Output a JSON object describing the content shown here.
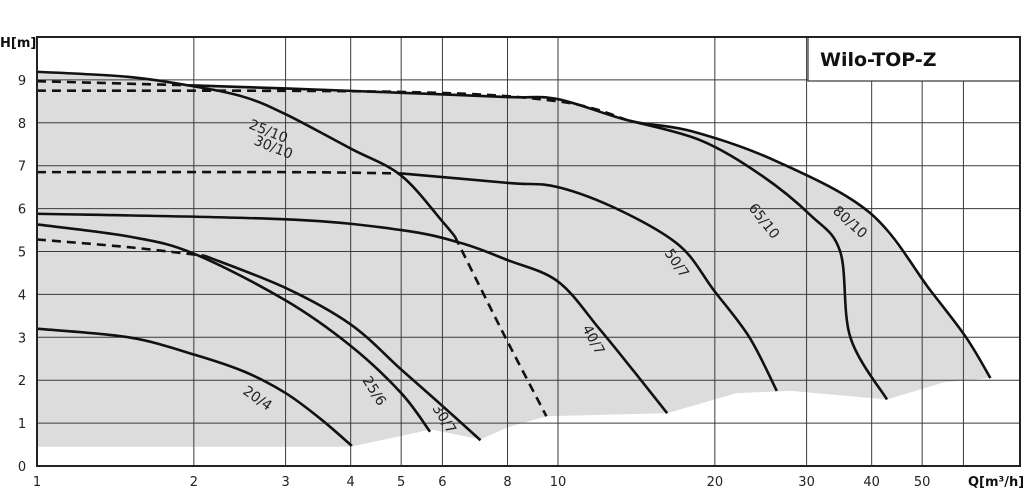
{
  "chart_data": {
    "type": "line",
    "title": "Wilo-TOP-Z",
    "xlabel": "Q[m³/h]",
    "ylabel": "H[m]",
    "x_scale": "log",
    "xlim": [
      1,
      77
    ],
    "ylim": [
      0,
      10
    ],
    "x_ticks": [
      1,
      2,
      3,
      4,
      5,
      6,
      8,
      10,
      20,
      30,
      40,
      50
    ],
    "x_gridlines": [
      2,
      3,
      4,
      5,
      6,
      8,
      10,
      20,
      30,
      40,
      50,
      60
    ],
    "y_ticks": [
      0,
      1,
      2,
      3,
      4,
      5,
      6,
      7,
      8,
      9
    ],
    "grid": true,
    "colors": {
      "curve": "#111111",
      "shade": "#dcdcdc",
      "grid": "#3a3a3a"
    },
    "shaded_region": {
      "top": [
        [
          1,
          9.19
        ],
        [
          1.5,
          9.05
        ],
        [
          2,
          8.87
        ],
        [
          3,
          8.8
        ],
        [
          5,
          8.7
        ],
        [
          8,
          8.6
        ],
        [
          10,
          8.55
        ],
        [
          13.7,
          8.05
        ],
        [
          18,
          7.8
        ],
        [
          28,
          7.0
        ],
        [
          40,
          5.9
        ],
        [
          52,
          4.1
        ],
        [
          60.7,
          3.0
        ],
        [
          67.6,
          2.05
        ]
      ],
      "bottom": [
        [
          1,
          0.45
        ],
        [
          4,
          0.45
        ],
        [
          5.7,
          0.85
        ],
        [
          7.1,
          0.62
        ],
        [
          8,
          0.9
        ],
        [
          9.5,
          1.16
        ],
        [
          16.2,
          1.23
        ],
        [
          22,
          1.7
        ],
        [
          28,
          1.75
        ],
        [
          42.8,
          1.55
        ],
        [
          55,
          1.95
        ],
        [
          67.6,
          2.05
        ]
      ]
    },
    "series": [
      {
        "name": "20/4",
        "solid": [
          [
            1,
            3.2
          ],
          [
            1.5,
            3.0
          ],
          [
            2,
            2.6
          ],
          [
            2.5,
            2.2
          ],
          [
            3,
            1.7
          ],
          [
            3.5,
            1.1
          ],
          [
            4.02,
            0.47
          ]
        ],
        "dashed": []
      },
      {
        "name": "25/6",
        "solid": [
          [
            1,
            5.63
          ],
          [
            1.5,
            5.35
          ],
          [
            2,
            4.95
          ],
          [
            3,
            3.86
          ],
          [
            4,
            2.8
          ],
          [
            5,
            1.7
          ],
          [
            5.68,
            0.8
          ]
        ],
        "dashed": []
      },
      {
        "name": "30/7",
        "solid": [
          [
            2.1,
            4.9
          ],
          [
            3,
            4.15
          ],
          [
            4,
            3.3
          ],
          [
            5,
            2.25
          ],
          [
            6,
            1.4
          ],
          [
            7.1,
            0.6
          ]
        ],
        "dashed": [
          [
            1,
            5.28
          ],
          [
            1.5,
            5.1
          ],
          [
            2.1,
            4.9
          ]
        ]
      },
      {
        "name": "40/7",
        "solid": [
          [
            1,
            5.88
          ],
          [
            3,
            5.75
          ],
          [
            5,
            5.5
          ],
          [
            6.5,
            5.2
          ],
          [
            8,
            4.8
          ],
          [
            10,
            4.3
          ],
          [
            12,
            3.2
          ],
          [
            14,
            2.2
          ],
          [
            16.2,
            1.23
          ]
        ],
        "dashed": []
      },
      {
        "name": "25/10 30/10",
        "solid": [
          [
            1,
            9.19
          ],
          [
            1.5,
            9.07
          ],
          [
            2,
            8.85
          ],
          [
            2.5,
            8.6
          ],
          [
            3,
            8.2
          ],
          [
            4,
            7.4
          ],
          [
            5,
            6.77
          ],
          [
            6,
            5.7
          ],
          [
            6.34,
            5.35
          ]
        ],
        "dashed": [
          [
            6.34,
            5.35
          ],
          [
            7,
            4.3
          ],
          [
            8,
            2.9
          ],
          [
            9.5,
            1.16
          ]
        ]
      },
      {
        "name": "50/7",
        "solid": [
          [
            5,
            6.82
          ],
          [
            8,
            6.6
          ],
          [
            10,
            6.5
          ],
          [
            13.2,
            5.95
          ],
          [
            17.1,
            5.14
          ],
          [
            19.9,
            4.1
          ],
          [
            23.3,
            3.0
          ],
          [
            26.3,
            1.75
          ]
        ],
        "dashed": [
          [
            1,
            6.85
          ],
          [
            3,
            6.85
          ],
          [
            5,
            6.82
          ]
        ]
      },
      {
        "name": "65/10",
        "solid": [
          [
            13.7,
            8.05
          ],
          [
            18.7,
            7.6
          ],
          [
            24.4,
            6.8
          ],
          [
            30.5,
            5.85
          ],
          [
            34.8,
            5.0
          ],
          [
            36.4,
            3.0
          ],
          [
            42.8,
            1.55
          ]
        ],
        "dashed": [
          [
            1,
            8.75
          ],
          [
            5,
            8.72
          ],
          [
            10,
            8.5
          ],
          [
            13.7,
            8.05
          ]
        ]
      },
      {
        "name": "80/10",
        "solid": [
          [
            2,
            8.87
          ],
          [
            3,
            8.8
          ],
          [
            5,
            8.7
          ],
          [
            8,
            8.6
          ],
          [
            10,
            8.55
          ],
          [
            13.7,
            8.05
          ],
          [
            18.1,
            7.8
          ],
          [
            26.3,
            7.1
          ],
          [
            39.7,
            5.9
          ],
          [
            51.8,
            4.1
          ],
          [
            60.7,
            3.0
          ],
          [
            67.6,
            2.05
          ]
        ],
        "dashed": [
          [
            1,
            8.97
          ],
          [
            2,
            8.87
          ]
        ]
      }
    ],
    "curve_labels": [
      "25/10",
      "30/10",
      "20/4",
      "25/6",
      "30/7",
      "40/7",
      "50/7",
      "65/10",
      "80/10"
    ]
  }
}
